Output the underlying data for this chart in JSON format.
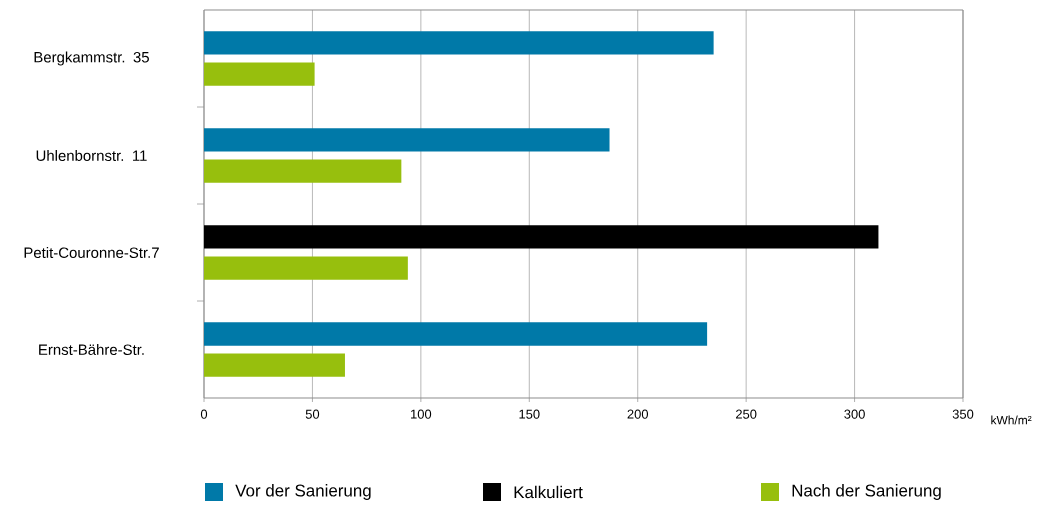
{
  "chart_data": {
    "type": "bar",
    "orientation": "horizontal",
    "categories": [
      "Bergkammstr. 35",
      "Uhlenbornstr. 11",
      "Petit-Couronne-Str.7",
      "Ernst-Bähre-Str."
    ],
    "series": [
      {
        "name": "Vor der Sanierung",
        "color": "#0079a8",
        "values": [
          235,
          187,
          null,
          232
        ]
      },
      {
        "name": "Kalkuliert",
        "color": "#000000",
        "values": [
          null,
          null,
          311,
          null
        ]
      },
      {
        "name": "Nach der Sanierung",
        "color": "#97bf0d",
        "values": [
          51,
          91,
          94,
          65
        ]
      }
    ],
    "xlabel": "kWh/m²",
    "xlim": [
      0,
      350
    ],
    "xticks": [
      0,
      50,
      100,
      150,
      200,
      250,
      300,
      350
    ],
    "grid": "x",
    "legend": "bottom"
  }
}
